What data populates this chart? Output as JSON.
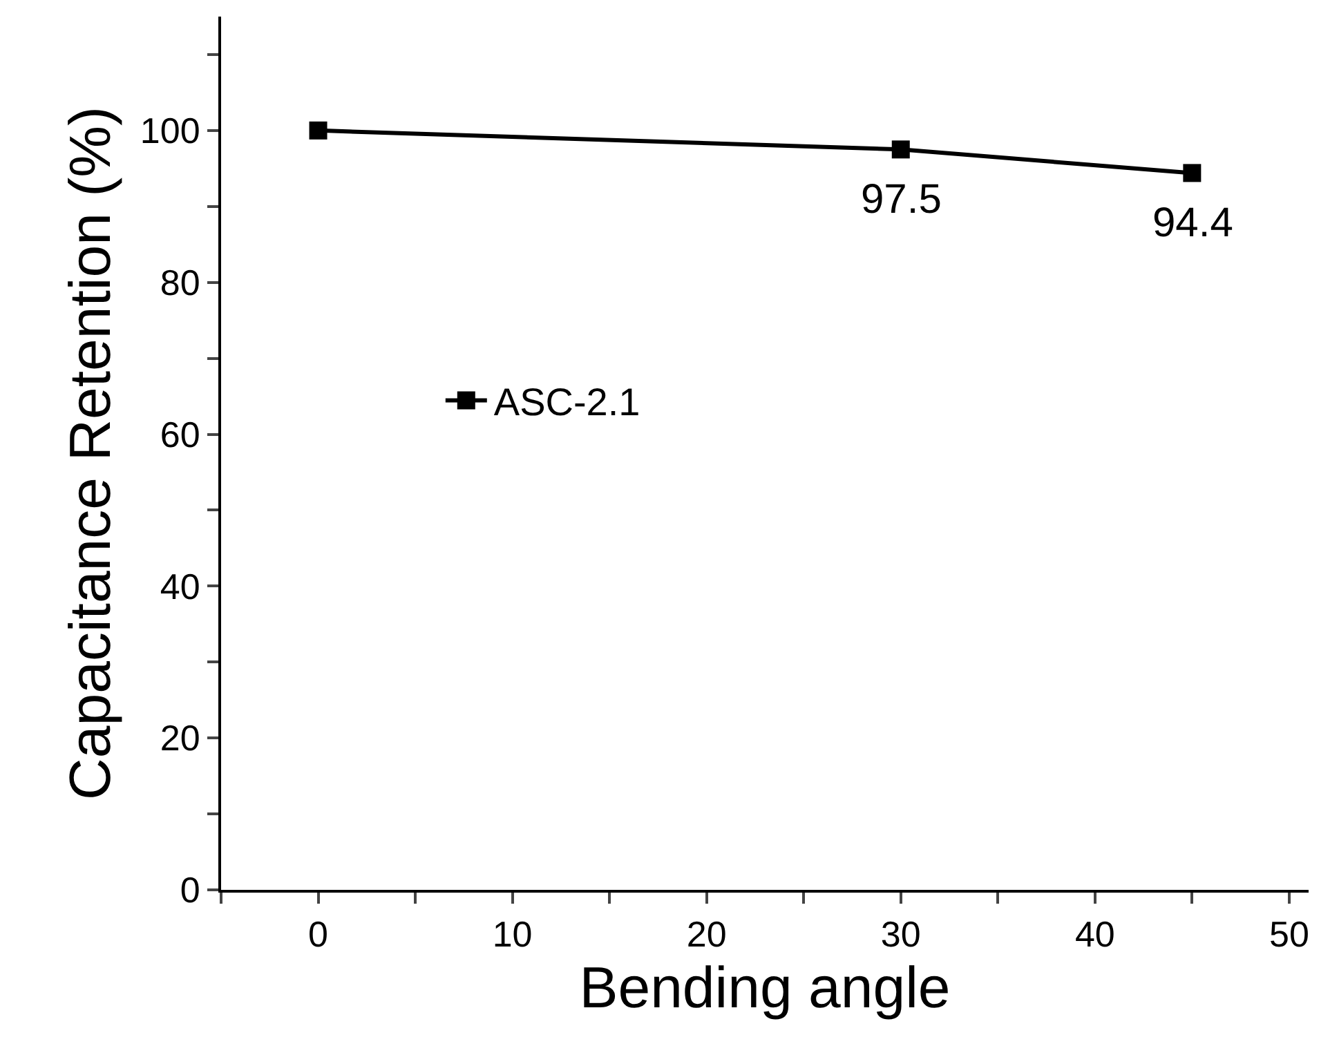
{
  "chart_data": {
    "type": "line",
    "xlabel": "Bending angle",
    "ylabel": "Capacitance Retention (%)",
    "x": [
      0,
      30,
      45
    ],
    "series": [
      {
        "name": "ASC-2.1",
        "color": "#000000",
        "values": [
          100,
          97.5,
          94.4
        ],
        "value_labels": [
          null,
          "97.5",
          "94.4"
        ]
      }
    ],
    "xlim": [
      -5,
      51
    ],
    "ylim": [
      0,
      115
    ],
    "xticks": [
      {
        "value": -5,
        "label": null
      },
      0,
      {
        "value": 5,
        "label": null
      },
      10,
      {
        "value": 15,
        "label": null
      },
      20,
      {
        "value": 25,
        "label": null
      },
      30,
      {
        "value": 35,
        "label": null
      },
      40,
      {
        "value": 45,
        "label": null
      },
      50
    ],
    "yticks": [
      0,
      {
        "value": 10,
        "label": null
      },
      20,
      {
        "value": 30,
        "label": null
      },
      40,
      {
        "value": 50,
        "label": null
      },
      60,
      {
        "value": 70,
        "label": null
      },
      80,
      {
        "value": 90,
        "label": null
      },
      100,
      {
        "value": 110,
        "label": null
      }
    ],
    "marker": "square",
    "line_style": "solid",
    "legend": "left",
    "grid": false
  }
}
